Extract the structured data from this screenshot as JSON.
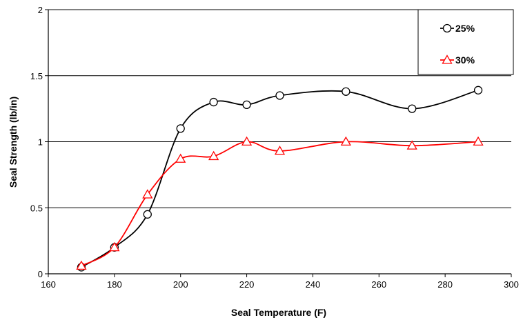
{
  "chart_data": {
    "type": "line",
    "title": "",
    "xlabel": "Seal Temperature (F)",
    "ylabel": "Seal Strength (lb/in)",
    "xlim": [
      160,
      300
    ],
    "ylim": [
      0,
      2
    ],
    "xticks": [
      "160",
      "180",
      "200",
      "220",
      "240",
      "260",
      "280",
      "300"
    ],
    "yticks": [
      "0",
      "0.5",
      "1",
      "1.5",
      "2"
    ],
    "grid": "horizontal",
    "legend_position": "top-right",
    "series": [
      {
        "name": "25%",
        "color": "#000000",
        "marker": "circle",
        "x": [
          170,
          180,
          190,
          200,
          210,
          220,
          230,
          250,
          270,
          290
        ],
        "y": [
          0.05,
          0.2,
          0.45,
          1.1,
          1.3,
          1.28,
          1.35,
          1.38,
          1.25,
          1.39
        ]
      },
      {
        "name": "30%",
        "color": "#ff0000",
        "marker": "triangle",
        "x": [
          170,
          180,
          190,
          200,
          210,
          220,
          230,
          250,
          270,
          290
        ],
        "y": [
          0.06,
          0.2,
          0.6,
          0.87,
          0.89,
          1.0,
          0.93,
          1.0,
          0.97,
          1.0
        ]
      }
    ]
  }
}
